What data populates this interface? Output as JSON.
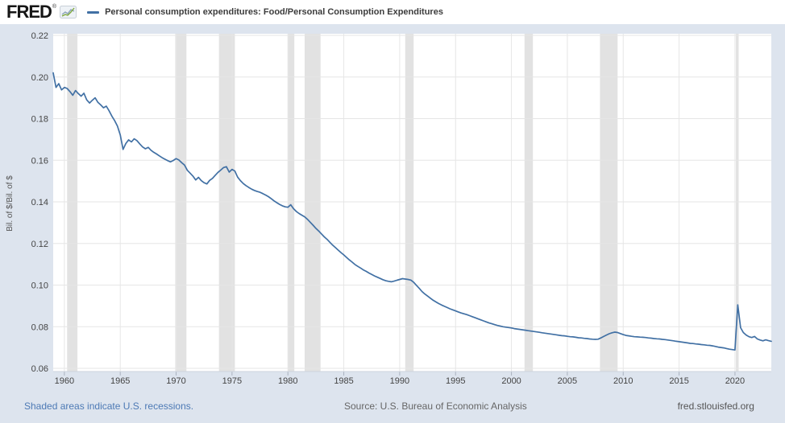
{
  "header": {
    "logo_text": "FRED",
    "registered_mark": "®",
    "series_title": "Personal consumption expenditures: Food/Personal Consumption Expenditures"
  },
  "footer": {
    "recession_note": "Shaded areas indicate U.S. recessions.",
    "source": "Source: U.S. Bureau of Economic Analysis",
    "site": "fred.stlouisfed.org"
  },
  "colors": {
    "background": "#dde4ee",
    "header_background": "#ffffff",
    "plot_background": "#ffffff",
    "gridline": "#e6e6e6",
    "recession_band": "#e2e2e2",
    "line": "#4170a4",
    "tick_text": "#444444",
    "link": "#4d7ab5"
  },
  "chart_data": {
    "type": "line",
    "title": "Personal consumption expenditures: Food/Personal Consumption Expenditures",
    "ylabel": "Bil. of $/Bil. of $",
    "xlabel": "",
    "frequency": "quarterly",
    "x_start": 1959.0,
    "x_step": 0.25,
    "x_end": 2023.25,
    "ylim": [
      0.06,
      0.22
    ],
    "grid": true,
    "legend_position": "top",
    "x_ticks": [
      {
        "value": 1960,
        "label": "1960"
      },
      {
        "value": 1965,
        "label": "1965"
      },
      {
        "value": 1970,
        "label": "1970"
      },
      {
        "value": 1975,
        "label": "1975"
      },
      {
        "value": 1980,
        "label": "1980"
      },
      {
        "value": 1985,
        "label": "1985"
      },
      {
        "value": 1990,
        "label": "1990"
      },
      {
        "value": 1995,
        "label": "1995"
      },
      {
        "value": 2000,
        "label": "2000"
      },
      {
        "value": 2005,
        "label": "2005"
      },
      {
        "value": 2010,
        "label": "2010"
      },
      {
        "value": 2015,
        "label": "2015"
      },
      {
        "value": 2020,
        "label": "2020"
      }
    ],
    "y_ticks": [
      {
        "value": 0.06,
        "label": "0.06"
      },
      {
        "value": 0.08,
        "label": "0.08"
      },
      {
        "value": 0.1,
        "label": "0.10"
      },
      {
        "value": 0.12,
        "label": "0.12"
      },
      {
        "value": 0.14,
        "label": "0.14"
      },
      {
        "value": 0.16,
        "label": "0.16"
      },
      {
        "value": 0.18,
        "label": "0.18"
      },
      {
        "value": 0.2,
        "label": "0.20"
      },
      {
        "value": 0.22,
        "label": "0.22"
      }
    ],
    "recessions": [
      [
        1960.25,
        1961.17
      ],
      [
        1969.92,
        1970.92
      ],
      [
        1973.83,
        1975.25
      ],
      [
        1980.0,
        1980.58
      ],
      [
        1981.5,
        1982.92
      ],
      [
        1990.5,
        1991.25
      ],
      [
        2001.17,
        2001.92
      ],
      [
        2007.92,
        2009.5
      ],
      [
        2020.08,
        2020.33
      ]
    ],
    "values": [
      0.202,
      0.195,
      0.1968,
      0.1938,
      0.195,
      0.1945,
      0.193,
      0.1912,
      0.1935,
      0.192,
      0.1908,
      0.1922,
      0.189,
      0.1875,
      0.1888,
      0.19,
      0.1878,
      0.1866,
      0.1852,
      0.186,
      0.1838,
      0.1812,
      0.179,
      0.1764,
      0.1722,
      0.1652,
      0.168,
      0.1698,
      0.1688,
      0.1703,
      0.1694,
      0.1678,
      0.1664,
      0.1655,
      0.1662,
      0.1648,
      0.1638,
      0.163,
      0.1621,
      0.1612,
      0.1605,
      0.1598,
      0.1592,
      0.1599,
      0.1608,
      0.1601,
      0.1588,
      0.1577,
      0.1552,
      0.1538,
      0.1524,
      0.1505,
      0.1518,
      0.1502,
      0.1492,
      0.1486,
      0.1503,
      0.1513,
      0.1528,
      0.1542,
      0.1553,
      0.1565,
      0.1569,
      0.1543,
      0.1556,
      0.1548,
      0.1519,
      0.1502,
      0.1488,
      0.1478,
      0.1469,
      0.1461,
      0.1455,
      0.145,
      0.1446,
      0.144,
      0.1433,
      0.1425,
      0.1416,
      0.1405,
      0.1396,
      0.1388,
      0.1381,
      0.1376,
      0.1374,
      0.1386,
      0.1367,
      0.1354,
      0.1344,
      0.1336,
      0.1328,
      0.1316,
      0.1302,
      0.1288,
      0.1273,
      0.126,
      0.1246,
      0.1232,
      0.122,
      0.1206,
      0.1192,
      0.118,
      0.1168,
      0.1156,
      0.1145,
      0.1133,
      0.1121,
      0.111,
      0.1099,
      0.109,
      0.1082,
      0.1073,
      0.1066,
      0.1058,
      0.1051,
      0.1044,
      0.1038,
      0.1032,
      0.1026,
      0.1021,
      0.1018,
      0.1016,
      0.1019,
      0.1023,
      0.1027,
      0.1031,
      0.1029,
      0.1027,
      0.1024,
      0.1014,
      0.0999,
      0.0984,
      0.0969,
      0.0957,
      0.0947,
      0.0937,
      0.0927,
      0.0919,
      0.0911,
      0.0904,
      0.0898,
      0.0892,
      0.0886,
      0.0881,
      0.0876,
      0.0871,
      0.0866,
      0.0862,
      0.0858,
      0.0853,
      0.0848,
      0.0843,
      0.0838,
      0.0833,
      0.0828,
      0.0823,
      0.0818,
      0.0814,
      0.081,
      0.0806,
      0.0803,
      0.08,
      0.0798,
      0.0796,
      0.0794,
      0.0791,
      0.0789,
      0.0787,
      0.0785,
      0.0783,
      0.0781,
      0.0779,
      0.0777,
      0.0775,
      0.0773,
      0.0771,
      0.0769,
      0.0767,
      0.0765,
      0.0763,
      0.0761,
      0.0759,
      0.0757,
      0.0756,
      0.0754,
      0.0752,
      0.0751,
      0.0749,
      0.0747,
      0.0746,
      0.0744,
      0.0743,
      0.0741,
      0.074,
      0.0739,
      0.074,
      0.0746,
      0.0753,
      0.076,
      0.0766,
      0.0771,
      0.0774,
      0.0772,
      0.0767,
      0.0762,
      0.0758,
      0.0756,
      0.0754,
      0.0752,
      0.0751,
      0.075,
      0.0749,
      0.0748,
      0.0746,
      0.0745,
      0.0743,
      0.0742,
      0.0741,
      0.0739,
      0.0738,
      0.0736,
      0.0734,
      0.0732,
      0.073,
      0.0728,
      0.0726,
      0.0724,
      0.0722,
      0.072,
      0.0719,
      0.0717,
      0.0716,
      0.0714,
      0.0713,
      0.0711,
      0.071,
      0.0708,
      0.0705,
      0.0702,
      0.07,
      0.0698,
      0.0695,
      0.0692,
      0.069,
      0.0688,
      0.0905,
      0.0795,
      0.0772,
      0.076,
      0.0752,
      0.0748,
      0.0753,
      0.0741,
      0.0736,
      0.0732,
      0.0737,
      0.0733,
      0.073
    ]
  }
}
